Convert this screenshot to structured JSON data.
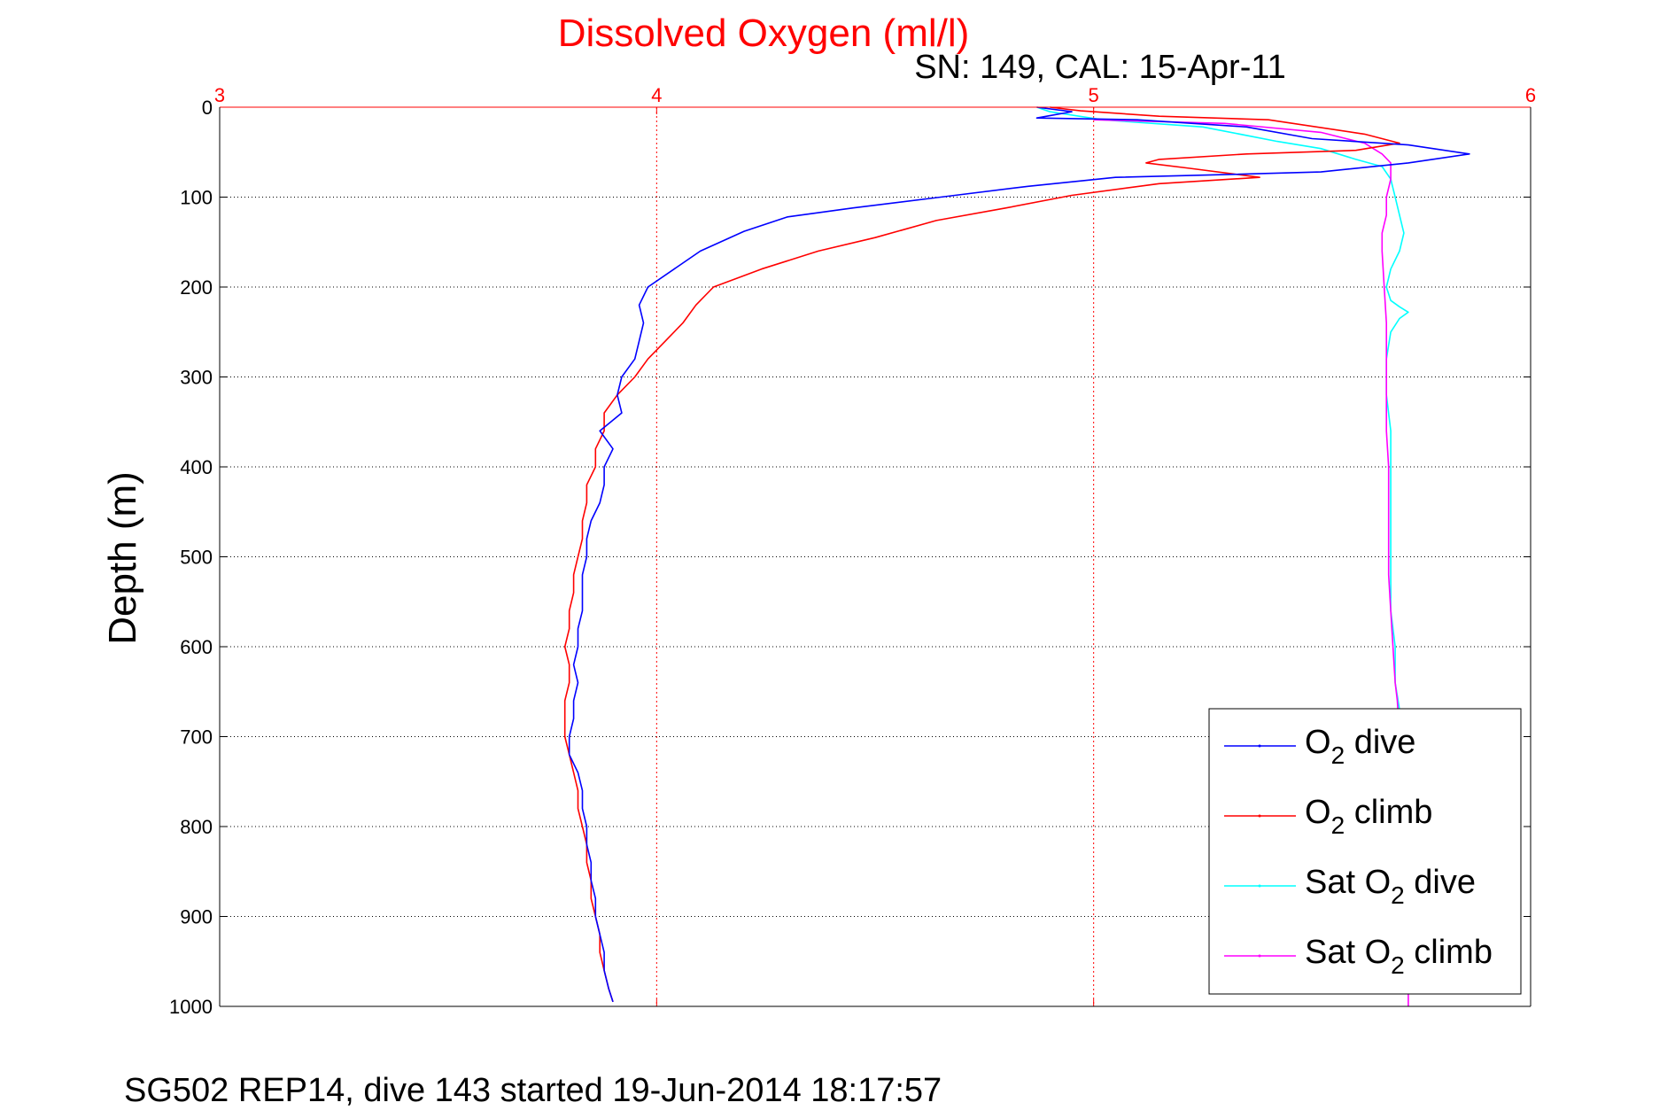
{
  "footer": "SG502 REP14, dive 143 started 19-Jun-2014 18:17:57",
  "chart_data": {
    "type": "line",
    "title": "Dissolved Oxygen (ml/l)",
    "subtitle": "SN: 149, CAL: 15-Apr-11",
    "xlabel": "",
    "ylabel": "Depth (m)",
    "xlim": [
      3,
      6
    ],
    "ylim": [
      0,
      1000
    ],
    "y_reversed": true,
    "x_axis_position": "top",
    "x_ticks": [
      "3",
      "4",
      "5",
      "6"
    ],
    "y_ticks": [
      "0",
      "100",
      "200",
      "300",
      "400",
      "500",
      "600",
      "700",
      "800",
      "900",
      "1000"
    ],
    "grid": true,
    "legend_position": "bottom-right",
    "colors": {
      "title": "#ff0000",
      "x_ticks": "#ff0000",
      "x_grid": "#ff0000",
      "y_grid": "#000000"
    },
    "series": [
      {
        "name": "O2 dive",
        "legend_base": "O",
        "legend_sub": "2",
        "legend_suffix": " dive",
        "color": "#0000ff",
        "points": [
          [
            4.87,
            0
          ],
          [
            4.95,
            5
          ],
          [
            4.87,
            12
          ],
          [
            5.1,
            14
          ],
          [
            5.35,
            22
          ],
          [
            5.5,
            35
          ],
          [
            5.72,
            42
          ],
          [
            5.86,
            52
          ],
          [
            5.72,
            62
          ],
          [
            5.52,
            72
          ],
          [
            5.3,
            75
          ],
          [
            5.05,
            78
          ],
          [
            4.85,
            88
          ],
          [
            4.65,
            100
          ],
          [
            4.45,
            112
          ],
          [
            4.3,
            122
          ],
          [
            4.2,
            138
          ],
          [
            4.1,
            160
          ],
          [
            4.04,
            180
          ],
          [
            3.98,
            200
          ],
          [
            3.96,
            220
          ],
          [
            3.97,
            240
          ],
          [
            3.96,
            260
          ],
          [
            3.95,
            280
          ],
          [
            3.92,
            300
          ],
          [
            3.91,
            320
          ],
          [
            3.92,
            340
          ],
          [
            3.87,
            360
          ],
          [
            3.9,
            380
          ],
          [
            3.88,
            400
          ],
          [
            3.88,
            420
          ],
          [
            3.87,
            440
          ],
          [
            3.85,
            460
          ],
          [
            3.84,
            480
          ],
          [
            3.84,
            500
          ],
          [
            3.83,
            520
          ],
          [
            3.83,
            540
          ],
          [
            3.83,
            560
          ],
          [
            3.82,
            580
          ],
          [
            3.82,
            600
          ],
          [
            3.81,
            620
          ],
          [
            3.82,
            640
          ],
          [
            3.81,
            660
          ],
          [
            3.81,
            680
          ],
          [
            3.8,
            700
          ],
          [
            3.8,
            720
          ],
          [
            3.82,
            740
          ],
          [
            3.83,
            760
          ],
          [
            3.83,
            780
          ],
          [
            3.84,
            800
          ],
          [
            3.84,
            820
          ],
          [
            3.85,
            840
          ],
          [
            3.85,
            860
          ],
          [
            3.86,
            880
          ],
          [
            3.86,
            900
          ],
          [
            3.87,
            920
          ],
          [
            3.88,
            940
          ],
          [
            3.88,
            960
          ],
          [
            3.89,
            980
          ],
          [
            3.9,
            995
          ]
        ]
      },
      {
        "name": "O2 climb",
        "legend_base": "O",
        "legend_sub": "2",
        "legend_suffix": " climb",
        "color": "#ff0000",
        "points": [
          [
            4.9,
            0
          ],
          [
            4.97,
            4
          ],
          [
            5.15,
            10
          ],
          [
            5.4,
            14
          ],
          [
            5.62,
            30
          ],
          [
            5.7,
            40
          ],
          [
            5.6,
            48
          ],
          [
            5.35,
            52
          ],
          [
            5.15,
            58
          ],
          [
            5.12,
            62
          ],
          [
            5.22,
            68
          ],
          [
            5.38,
            78
          ],
          [
            5.15,
            85
          ],
          [
            4.95,
            98
          ],
          [
            4.8,
            112
          ],
          [
            4.64,
            126
          ],
          [
            4.5,
            145
          ],
          [
            4.37,
            160
          ],
          [
            4.24,
            180
          ],
          [
            4.13,
            200
          ],
          [
            4.09,
            220
          ],
          [
            4.06,
            240
          ],
          [
            4.02,
            260
          ],
          [
            3.98,
            280
          ],
          [
            3.95,
            300
          ],
          [
            3.91,
            320
          ],
          [
            3.88,
            340
          ],
          [
            3.88,
            360
          ],
          [
            3.86,
            380
          ],
          [
            3.86,
            400
          ],
          [
            3.84,
            420
          ],
          [
            3.84,
            440
          ],
          [
            3.83,
            460
          ],
          [
            3.83,
            480
          ],
          [
            3.82,
            500
          ],
          [
            3.81,
            520
          ],
          [
            3.81,
            540
          ],
          [
            3.8,
            560
          ],
          [
            3.8,
            580
          ],
          [
            3.79,
            600
          ],
          [
            3.8,
            620
          ],
          [
            3.8,
            640
          ],
          [
            3.79,
            660
          ],
          [
            3.79,
            680
          ],
          [
            3.79,
            700
          ],
          [
            3.8,
            720
          ],
          [
            3.81,
            740
          ],
          [
            3.82,
            760
          ],
          [
            3.82,
            780
          ],
          [
            3.83,
            800
          ],
          [
            3.84,
            820
          ],
          [
            3.84,
            840
          ],
          [
            3.85,
            860
          ],
          [
            3.85,
            880
          ],
          [
            3.86,
            900
          ],
          [
            3.87,
            920
          ],
          [
            3.87,
            940
          ],
          [
            3.88,
            960
          ],
          [
            3.89,
            980
          ],
          [
            3.9,
            995
          ]
        ]
      },
      {
        "name": "Sat O2 dive",
        "legend_base": "Sat O",
        "legend_sub": "2",
        "legend_suffix": " dive",
        "color": "#00ffff",
        "points": [
          [
            4.87,
            0
          ],
          [
            4.9,
            5
          ],
          [
            5.02,
            14
          ],
          [
            5.25,
            22
          ],
          [
            5.42,
            38
          ],
          [
            5.52,
            46
          ],
          [
            5.6,
            58
          ],
          [
            5.66,
            66
          ],
          [
            5.68,
            80
          ],
          [
            5.69,
            100
          ],
          [
            5.7,
            120
          ],
          [
            5.71,
            140
          ],
          [
            5.7,
            160
          ],
          [
            5.68,
            180
          ],
          [
            5.67,
            200
          ],
          [
            5.68,
            215
          ],
          [
            5.7,
            222
          ],
          [
            5.72,
            228
          ],
          [
            5.7,
            235
          ],
          [
            5.68,
            250
          ],
          [
            5.67,
            280
          ],
          [
            5.67,
            320
          ],
          [
            5.68,
            360
          ],
          [
            5.68,
            400
          ],
          [
            5.68,
            440
          ],
          [
            5.68,
            480
          ],
          [
            5.68,
            520
          ],
          [
            5.68,
            560
          ],
          [
            5.69,
            600
          ],
          [
            5.69,
            640
          ],
          [
            5.7,
            670
          ]
        ]
      },
      {
        "name": "Sat O2 climb",
        "legend_base": "Sat O",
        "legend_sub": "2",
        "legend_suffix": " climb",
        "color": "#ff00ff",
        "points": [
          [
            5.0,
            14
          ],
          [
            5.3,
            18
          ],
          [
            5.52,
            28
          ],
          [
            5.62,
            40
          ],
          [
            5.66,
            52
          ],
          [
            5.68,
            62
          ],
          [
            5.68,
            80
          ],
          [
            5.67,
            100
          ],
          [
            5.67,
            120
          ],
          [
            5.66,
            140
          ],
          [
            5.66,
            160
          ],
          [
            5.665,
            200
          ],
          [
            5.67,
            240
          ],
          [
            5.67,
            280
          ],
          [
            5.67,
            320
          ],
          [
            5.67,
            360
          ],
          [
            5.675,
            400
          ],
          [
            5.675,
            440
          ],
          [
            5.675,
            480
          ],
          [
            5.675,
            520
          ],
          [
            5.68,
            560
          ],
          [
            5.685,
            600
          ],
          [
            5.69,
            640
          ],
          [
            5.695,
            660
          ],
          [
            5.7,
            700
          ],
          [
            5.705,
            760
          ],
          [
            5.71,
            820
          ],
          [
            5.715,
            880
          ],
          [
            5.72,
            940
          ],
          [
            5.72,
            1000
          ]
        ]
      }
    ]
  }
}
